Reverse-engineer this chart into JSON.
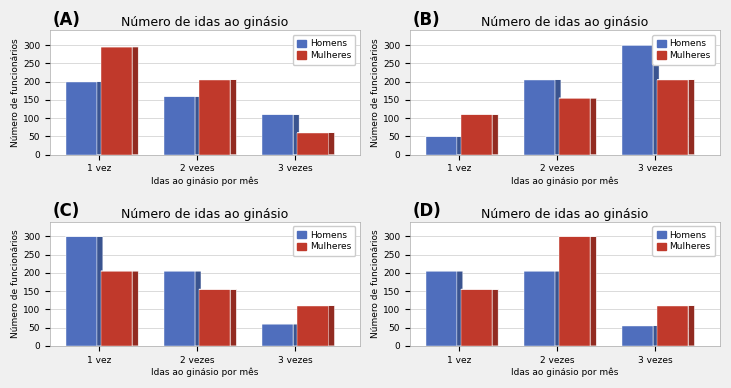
{
  "charts": [
    {
      "label": "(A)",
      "homens": [
        200,
        160,
        110
      ],
      "mulheres": [
        295,
        205,
        60
      ]
    },
    {
      "label": "(B)",
      "homens": [
        50,
        205,
        300
      ],
      "mulheres": [
        110,
        155,
        205
      ]
    },
    {
      "label": "(C)",
      "homens": [
        300,
        205,
        60
      ],
      "mulheres": [
        205,
        155,
        110
      ]
    },
    {
      "label": "(D)",
      "homens": [
        205,
        205,
        55
      ],
      "mulheres": [
        155,
        300,
        110
      ]
    }
  ],
  "categories": [
    "1 vez",
    "2 vezes",
    "3 vezes"
  ],
  "title": "Número de idas ao ginásio",
  "xlabel": "Idas ao ginásio por mês",
  "ylabel": "Número de funcionários",
  "ylim": [
    0,
    340
  ],
  "yticks": [
    0,
    50,
    100,
    150,
    200,
    250,
    300
  ],
  "bar_width": 0.32,
  "color_homens": "#4F6EBD",
  "color_mulheres": "#C0392B",
  "color_homens_side": "#3A5490",
  "color_mulheres_side": "#922B21",
  "color_homens_top": "#7B96D4",
  "color_mulheres_top": "#E07070",
  "legend_homens": "Homens",
  "legend_mulheres": "Mulheres",
  "bg_color": "#F0F0F0",
  "chart_bg": "#FFFFFF",
  "grid_color": "#CCCCCC",
  "depth": 7,
  "title_fontsize": 9,
  "tick_fontsize": 6.5,
  "axis_label_fontsize": 6.5,
  "legend_fontsize": 6.5,
  "label_fontsize": 12
}
